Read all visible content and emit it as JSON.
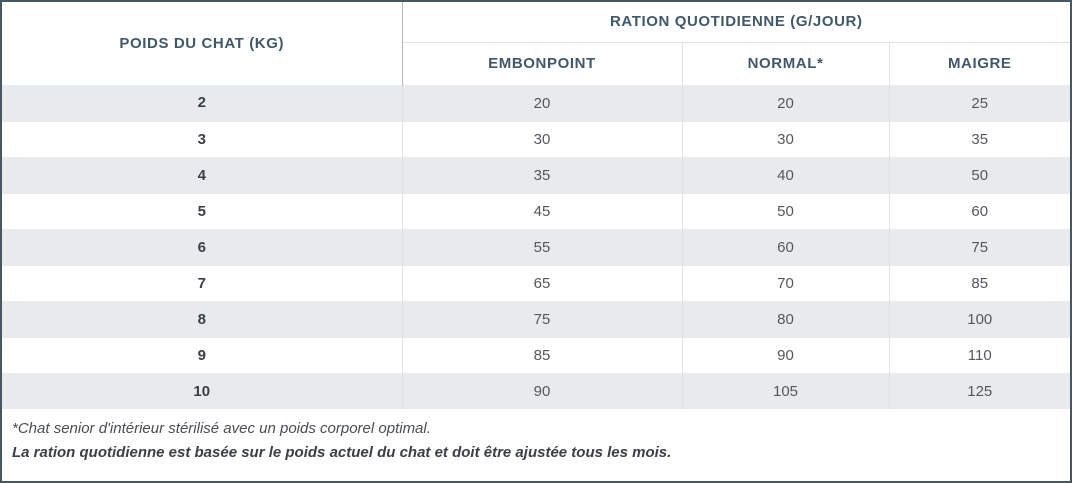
{
  "table": {
    "weight_header": "POIDS DU CHAT (KG)",
    "ration_header": "RATION QUOTIDIENNE (G/JOUR)",
    "sub_headers": [
      "EMBONPOINT",
      "NORMAL*",
      "MAIGRE"
    ],
    "rows": [
      {
        "weight": "2",
        "embonpoint": "20",
        "normal": "20",
        "maigre": "25"
      },
      {
        "weight": "3",
        "embonpoint": "30",
        "normal": "30",
        "maigre": "35"
      },
      {
        "weight": "4",
        "embonpoint": "35",
        "normal": "40",
        "maigre": "50"
      },
      {
        "weight": "5",
        "embonpoint": "45",
        "normal": "50",
        "maigre": "60"
      },
      {
        "weight": "6",
        "embonpoint": "55",
        "normal": "60",
        "maigre": "75"
      },
      {
        "weight": "7",
        "embonpoint": "65",
        "normal": "70",
        "maigre": "85"
      },
      {
        "weight": "8",
        "embonpoint": "75",
        "normal": "80",
        "maigre": "100"
      },
      {
        "weight": "9",
        "embonpoint": "85",
        "normal": "90",
        "maigre": "110"
      },
      {
        "weight": "10",
        "embonpoint": "90",
        "normal": "105",
        "maigre": "125"
      }
    ]
  },
  "footnotes": {
    "line1": "*Chat senior d'intérieur stérilisé avec un poids corporel optimal.",
    "line2": "La ration quotidienne est basée sur le poids actuel du chat et doit être ajustée tous les mois."
  },
  "chart_data": {
    "type": "table",
    "title": "RATION QUOTIDIENNE (G/JOUR)",
    "columns": [
      "POIDS DU CHAT (KG)",
      "EMBONPOINT",
      "NORMAL*",
      "MAIGRE"
    ],
    "rows": [
      [
        2,
        20,
        20,
        25
      ],
      [
        3,
        30,
        30,
        35
      ],
      [
        4,
        35,
        40,
        50
      ],
      [
        5,
        45,
        50,
        60
      ],
      [
        6,
        55,
        60,
        75
      ],
      [
        7,
        65,
        70,
        85
      ],
      [
        8,
        75,
        80,
        100
      ],
      [
        9,
        85,
        90,
        110
      ],
      [
        10,
        90,
        105,
        125
      ]
    ]
  },
  "colors": {
    "outer_border": "#48575f",
    "header_text": "#41586b",
    "stripe_bg": "#e8ebee",
    "weight_text": "#3b4045",
    "value_text": "#54585b"
  }
}
